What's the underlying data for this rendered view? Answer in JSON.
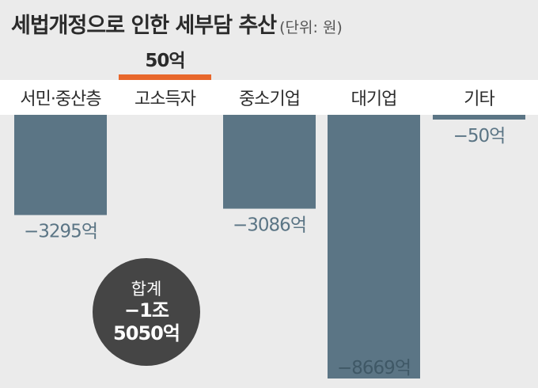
{
  "title": "세법개정으로 인한 세부담 추산",
  "unit": "(단위: 원)",
  "chart_data": {
    "type": "bar",
    "categories": [
      "서민·중산층",
      "고소득자",
      "중소기업",
      "대기업",
      "기타"
    ],
    "values": [
      -3295,
      50,
      -3086,
      -8669,
      -50
    ],
    "value_labels": [
      "−3295억",
      "50억",
      "−3086억",
      "−8669억",
      "−50억"
    ],
    "ylim": [
      -8669,
      50
    ],
    "colors": {
      "negative": "#5b7585",
      "positive": "#e8672b",
      "negative_label": "#5b7585",
      "positive_label": "#2b2b2b"
    }
  },
  "total": {
    "label": "합계",
    "value_line1": "−1조",
    "value_line2": "5050억"
  }
}
